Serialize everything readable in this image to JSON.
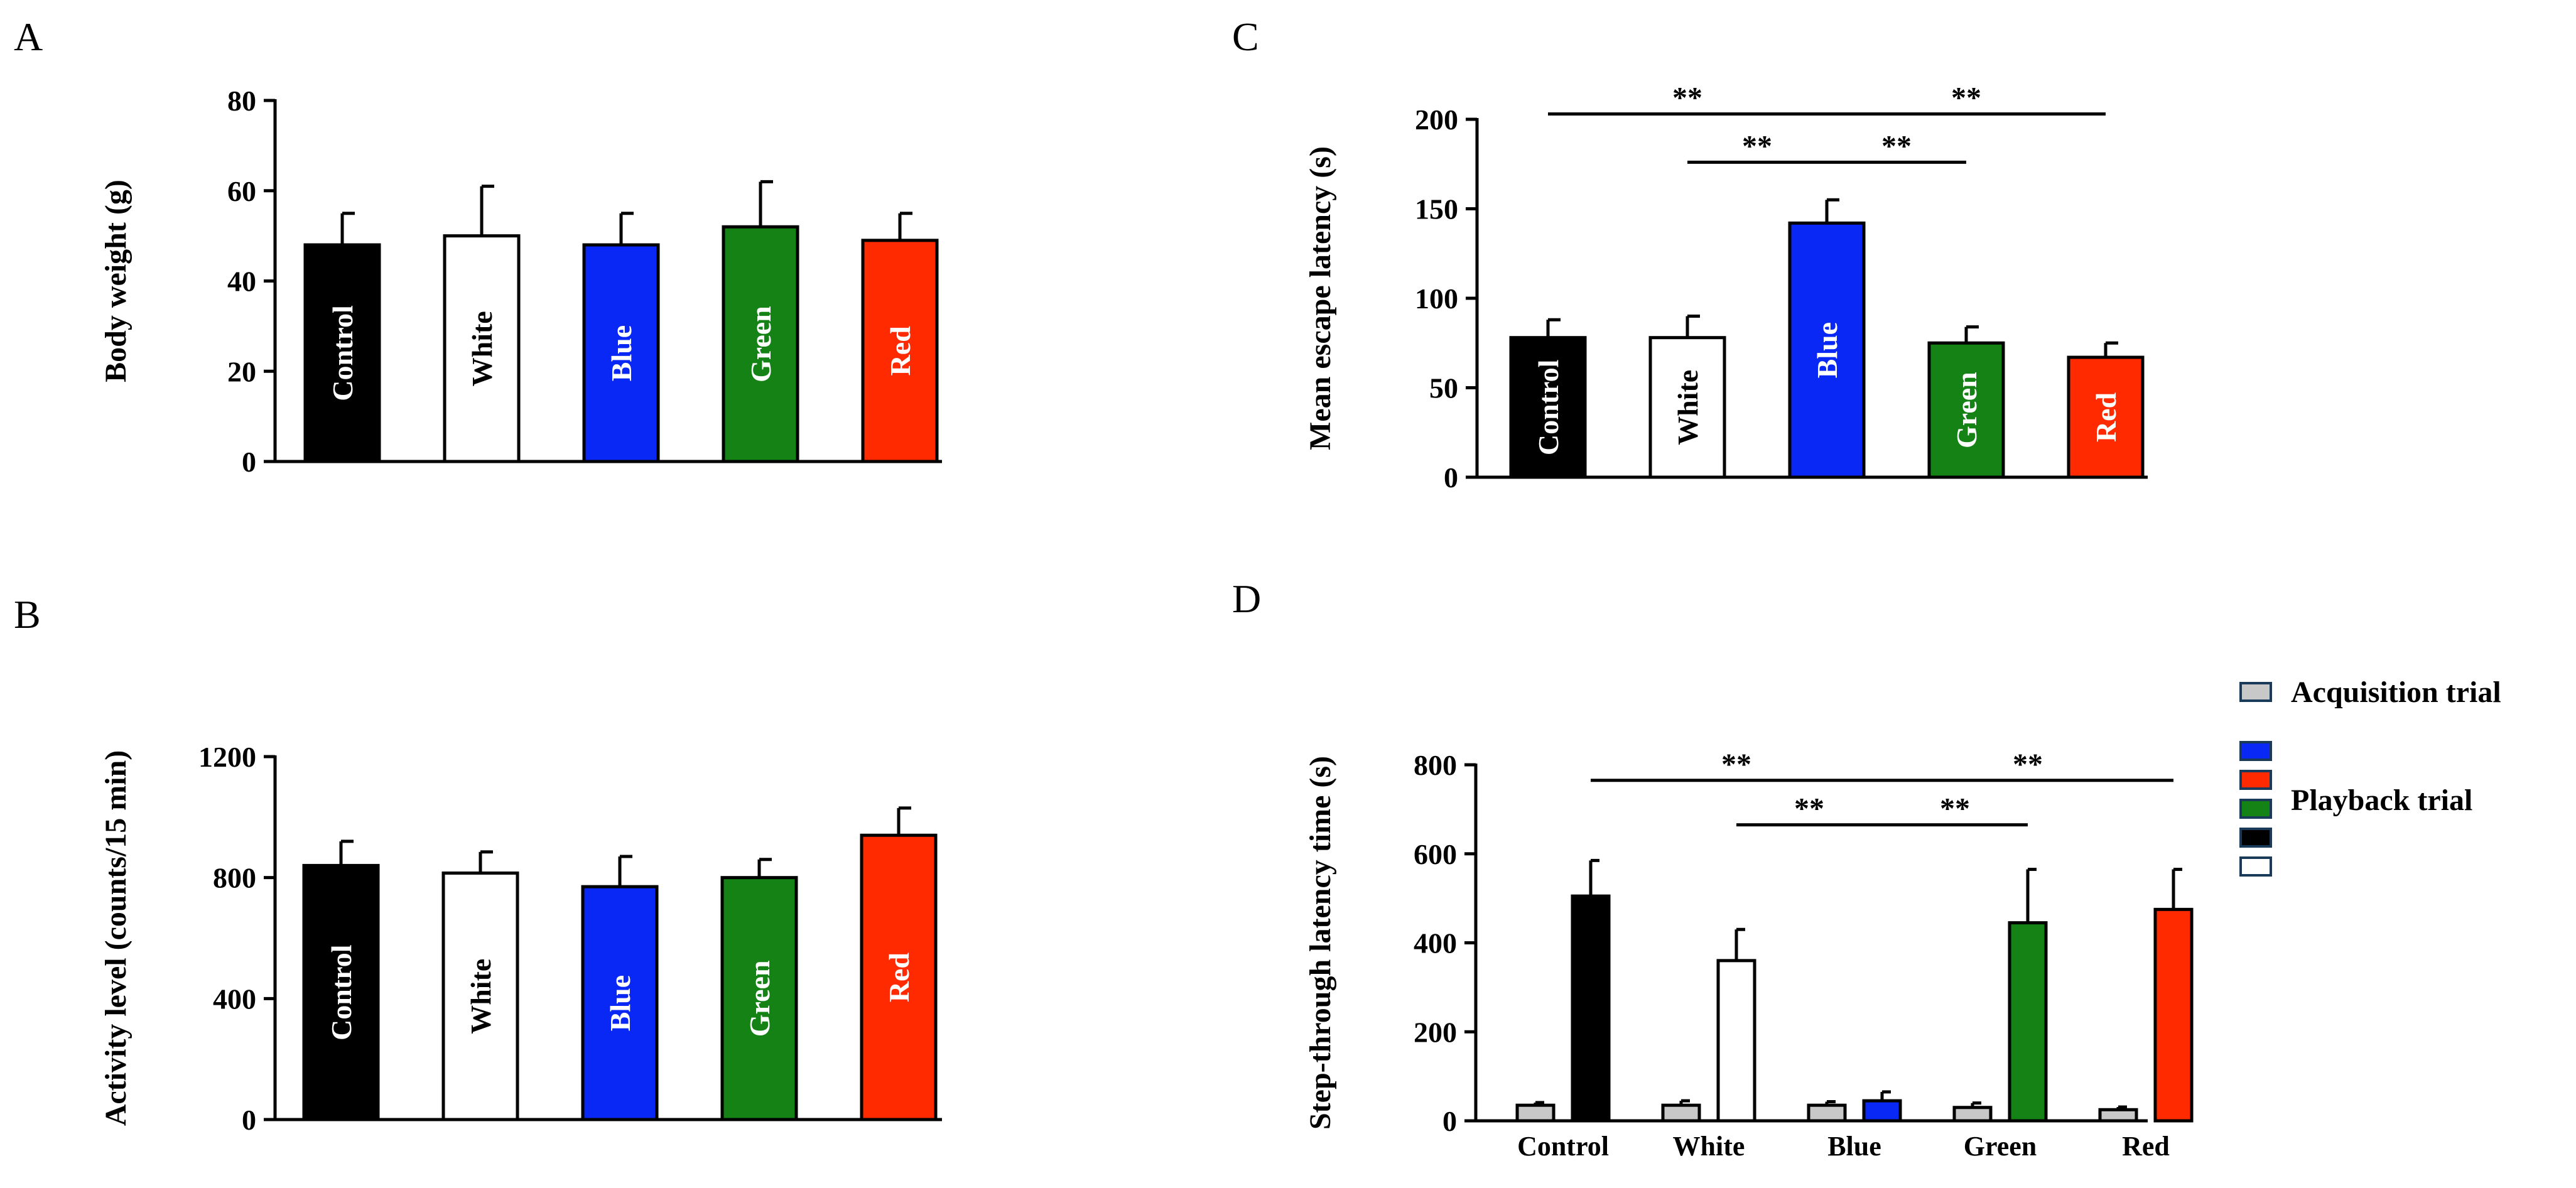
{
  "chart_data": [
    {
      "panel": "A",
      "type": "bar",
      "ylabel": "Body weight (g)",
      "ylim": [
        0,
        80
      ],
      "yticks": [
        0,
        20,
        40,
        60,
        80
      ],
      "categories": [
        "Control",
        "White",
        "Blue",
        "Green",
        "Red"
      ],
      "values": [
        48,
        50,
        48,
        52,
        49
      ],
      "errors": [
        7,
        11,
        7,
        10,
        6
      ],
      "colors": [
        "#000000",
        "#ffffff",
        "#0a28f5",
        "#148214",
        "#ff2a00"
      ],
      "label_colors": [
        "#ffffff",
        "#000000",
        "#ffffff",
        "#ffffff",
        "#ffffff"
      ],
      "significance": []
    },
    {
      "panel": "B",
      "type": "bar",
      "ylabel": "Activity level (counts/15 min)",
      "ylim": [
        0,
        1200
      ],
      "yticks": [
        0,
        400,
        800,
        1200
      ],
      "categories": [
        "Control",
        "White",
        "Blue",
        "Green",
        "Red"
      ],
      "values": [
        840,
        815,
        770,
        800,
        940
      ],
      "errors": [
        80,
        70,
        100,
        60,
        90
      ],
      "colors": [
        "#000000",
        "#ffffff",
        "#0a28f5",
        "#148214",
        "#ff2a00"
      ],
      "label_colors": [
        "#ffffff",
        "#000000",
        "#ffffff",
        "#ffffff",
        "#ffffff"
      ],
      "significance": []
    },
    {
      "panel": "C",
      "type": "bar",
      "ylabel": "Mean escape latency (s)",
      "ylim": [
        0,
        200
      ],
      "yticks": [
        0,
        50,
        100,
        150,
        200
      ],
      "categories": [
        "Control",
        "White",
        "Blue",
        "Green",
        "Red"
      ],
      "values": [
        78,
        78,
        142,
        75,
        67
      ],
      "errors": [
        10,
        12,
        13,
        9,
        8
      ],
      "colors": [
        "#000000",
        "#ffffff",
        "#0a28f5",
        "#148214",
        "#ff2a00"
      ],
      "label_colors": [
        "#ffffff",
        "#000000",
        "#ffffff",
        "#ffffff",
        "#ffffff"
      ],
      "significance": [
        {
          "from": 0,
          "to": 2,
          "y": 203,
          "label": "**"
        },
        {
          "from": 2,
          "to": 4,
          "y": 203,
          "label": "**"
        },
        {
          "from": 1,
          "to": 2,
          "y": 176,
          "label": "**"
        },
        {
          "from": 2,
          "to": 3,
          "y": 176,
          "label": "**"
        }
      ]
    },
    {
      "panel": "D",
      "type": "bar",
      "ylabel": "Step-through latency time (s)",
      "ylim": [
        0,
        800
      ],
      "yticks": [
        0,
        200,
        400,
        600,
        800
      ],
      "categories": [
        "Control",
        "White",
        "Blue",
        "Green",
        "Red"
      ],
      "series": [
        {
          "name": "Acquisition trial",
          "values": [
            35,
            35,
            35,
            30,
            25
          ],
          "errors": [
            6,
            10,
            8,
            10,
            6
          ],
          "colors": [
            "#c8c8c8",
            "#c8c8c8",
            "#c8c8c8",
            "#c8c8c8",
            "#c8c8c8"
          ]
        },
        {
          "name": "Playback trial",
          "values": [
            505,
            360,
            45,
            445,
            475
          ],
          "errors": [
            80,
            70,
            20,
            120,
            90
          ],
          "colors": [
            "#000000",
            "#ffffff",
            "#0a28f5",
            "#148214",
            "#ff2a00"
          ]
        }
      ],
      "legend": {
        "position": "right",
        "acquisition_label": "Acquisition trial",
        "playback_label": "Playback trial",
        "acquisition_color": "#c8c8c8",
        "playback_colors": [
          "#0a28f5",
          "#ff2a00",
          "#148214",
          "#000000",
          "#ffffff"
        ]
      },
      "significance": [
        {
          "from": 0,
          "to": 2,
          "y": 765,
          "label": "**"
        },
        {
          "from": 2,
          "to": 4,
          "y": 765,
          "label": "**"
        },
        {
          "from": 1,
          "to": 2,
          "y": 665,
          "label": "**"
        },
        {
          "from": 2,
          "to": 3,
          "y": 665,
          "label": "**"
        }
      ]
    }
  ]
}
